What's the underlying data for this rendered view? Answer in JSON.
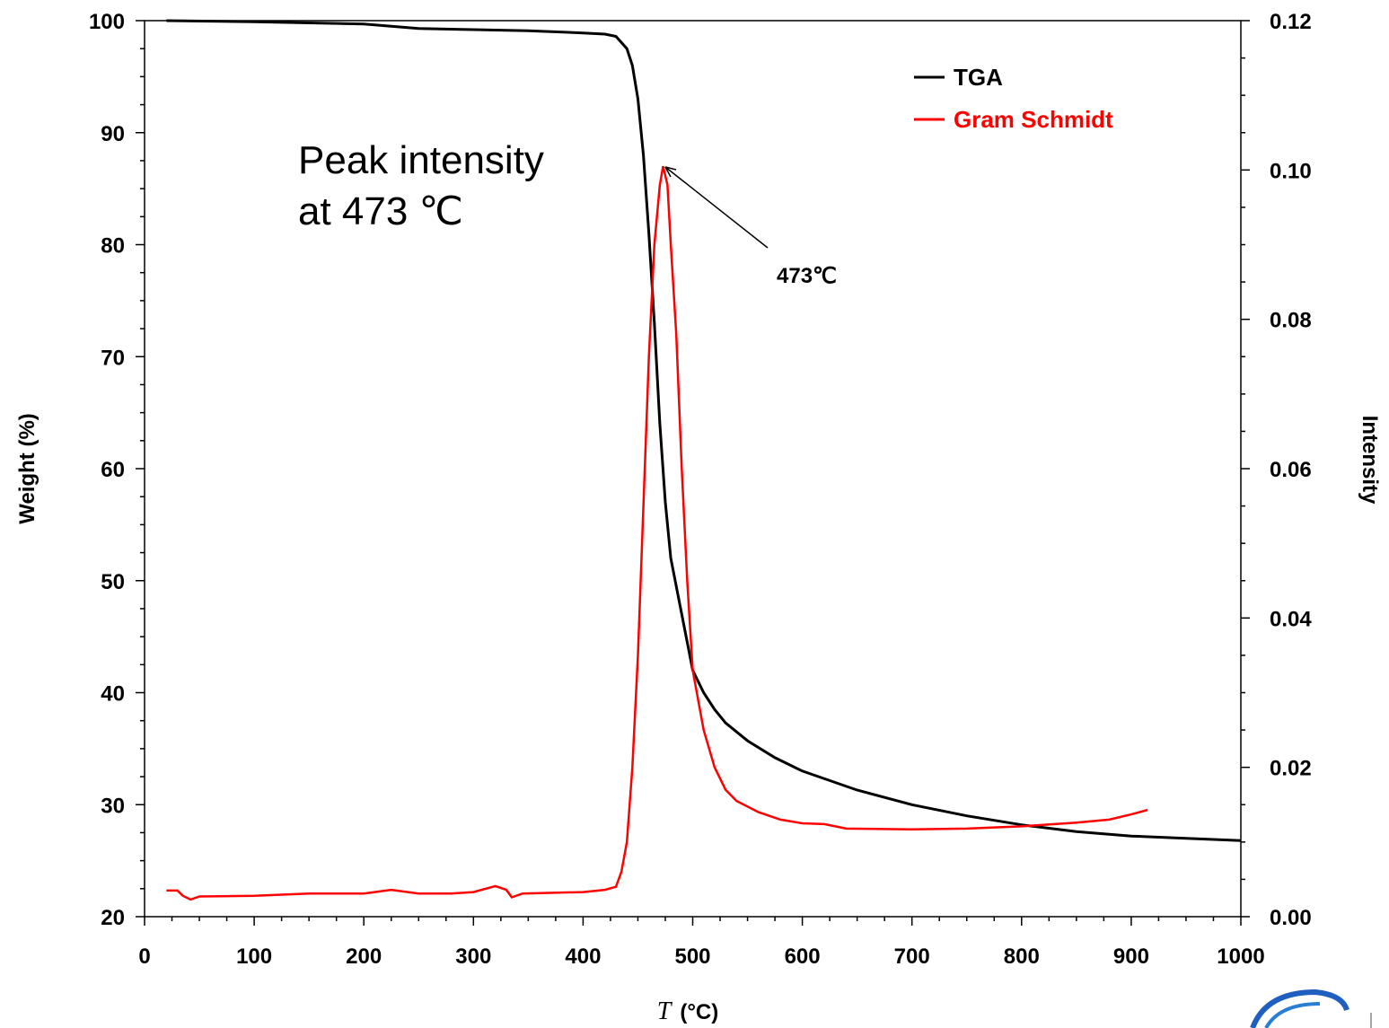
{
  "chart_data": {
    "type": "line",
    "xlabel_symbol": "T",
    "xlabel_unit": "(°C)",
    "ylabel_left": "Weight  (%)",
    "ylabel_right": "Intensity",
    "xlim": [
      0,
      1000
    ],
    "ylim_left": [
      20,
      100
    ],
    "ylim_right": [
      0,
      0.12
    ],
    "x_ticks": [
      "0",
      "100",
      "200",
      "300",
      "400",
      "500",
      "600",
      "700",
      "800",
      "900",
      "1000"
    ],
    "y_left_ticks": [
      "20",
      "30",
      "40",
      "50",
      "60",
      "70",
      "80",
      "90",
      "100"
    ],
    "y_right_ticks": [
      "0.00",
      "0.02",
      "0.04",
      "0.06",
      "0.08",
      "0.10",
      "0.12"
    ],
    "grid": false,
    "legend_position": "top-right",
    "series": [
      {
        "name": "TGA",
        "axis": "left",
        "color": "#000000",
        "points": [
          [
            20,
            100
          ],
          [
            100,
            99.9
          ],
          [
            200,
            99.7
          ],
          [
            250,
            99.3
          ],
          [
            300,
            99.2
          ],
          [
            350,
            99.1
          ],
          [
            400,
            98.9
          ],
          [
            420,
            98.8
          ],
          [
            430,
            98.6
          ],
          [
            440,
            97.5
          ],
          [
            445,
            96
          ],
          [
            450,
            93
          ],
          [
            455,
            88
          ],
          [
            460,
            81
          ],
          [
            465,
            73
          ],
          [
            470,
            64
          ],
          [
            475,
            57
          ],
          [
            480,
            52
          ],
          [
            490,
            47
          ],
          [
            500,
            42
          ],
          [
            510,
            40
          ],
          [
            520,
            38.5
          ],
          [
            530,
            37.3
          ],
          [
            550,
            35.7
          ],
          [
            575,
            34.2
          ],
          [
            600,
            33
          ],
          [
            650,
            31.3
          ],
          [
            700,
            30
          ],
          [
            750,
            29
          ],
          [
            800,
            28.2
          ],
          [
            850,
            27.6
          ],
          [
            900,
            27.2
          ],
          [
            950,
            27
          ],
          [
            1000,
            26.8
          ]
        ]
      },
      {
        "name": "Gram Schmidt",
        "axis": "right",
        "color": "#ff0000",
        "points": [
          [
            20,
            0.0035
          ],
          [
            30,
            0.0035
          ],
          [
            35,
            0.0028
          ],
          [
            42,
            0.0023
          ],
          [
            50,
            0.0027
          ],
          [
            100,
            0.0028
          ],
          [
            150,
            0.0031
          ],
          [
            200,
            0.0031
          ],
          [
            225,
            0.0036
          ],
          [
            250,
            0.0031
          ],
          [
            280,
            0.0031
          ],
          [
            300,
            0.0033
          ],
          [
            320,
            0.0041
          ],
          [
            330,
            0.0036
          ],
          [
            335,
            0.0026
          ],
          [
            345,
            0.0031
          ],
          [
            400,
            0.0033
          ],
          [
            420,
            0.0036
          ],
          [
            430,
            0.004
          ],
          [
            435,
            0.006
          ],
          [
            440,
            0.01
          ],
          [
            445,
            0.02
          ],
          [
            450,
            0.035
          ],
          [
            455,
            0.055
          ],
          [
            460,
            0.075
          ],
          [
            465,
            0.09
          ],
          [
            470,
            0.098
          ],
          [
            473,
            0.1005
          ],
          [
            477,
            0.098
          ],
          [
            480,
            0.09
          ],
          [
            485,
            0.078
          ],
          [
            490,
            0.06
          ],
          [
            495,
            0.045
          ],
          [
            500,
            0.033
          ],
          [
            510,
            0.025
          ],
          [
            520,
            0.02
          ],
          [
            530,
            0.017
          ],
          [
            540,
            0.0155
          ],
          [
            560,
            0.014
          ],
          [
            580,
            0.013
          ],
          [
            600,
            0.0125
          ],
          [
            620,
            0.0124
          ],
          [
            640,
            0.0118
          ],
          [
            700,
            0.0117
          ],
          [
            750,
            0.0118
          ],
          [
            800,
            0.0121
          ],
          [
            850,
            0.0126
          ],
          [
            880,
            0.013
          ],
          [
            900,
            0.0137
          ],
          [
            915,
            0.0143
          ]
        ]
      }
    ],
    "annotations": [
      {
        "text_line1": "Peak intensity",
        "text_line2": "at 473 ℃"
      },
      {
        "text": "473℃",
        "points_to": [
          473,
          0.1005
        ]
      }
    ]
  }
}
